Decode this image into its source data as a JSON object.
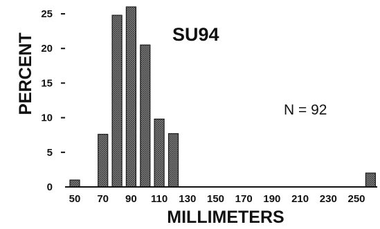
{
  "chart_data": {
    "type": "bar",
    "title": "",
    "xlabel": "MILLIMETERS",
    "ylabel": "PERCENT",
    "annotations": {
      "label": "SU94",
      "n_text": "N = 92"
    },
    "x_ticks": [
      "50",
      "70",
      "90",
      "110",
      "130",
      "150",
      "170",
      "190",
      "210",
      "230",
      "250"
    ],
    "y_ticks": [
      0,
      5,
      10,
      15,
      20,
      25
    ],
    "ylim": [
      0,
      26.5
    ],
    "bar_color": "#555555",
    "bars": [
      {
        "x": 50,
        "value": 1
      },
      {
        "x": 70,
        "value": 7.6
      },
      {
        "x": 80,
        "value": 24.8
      },
      {
        "x": 90,
        "value": 26
      },
      {
        "x": 100,
        "value": 20.5
      },
      {
        "x": 110,
        "value": 9.8
      },
      {
        "x": 120,
        "value": 7.7
      },
      {
        "x": 260,
        "value": 2
      }
    ]
  }
}
